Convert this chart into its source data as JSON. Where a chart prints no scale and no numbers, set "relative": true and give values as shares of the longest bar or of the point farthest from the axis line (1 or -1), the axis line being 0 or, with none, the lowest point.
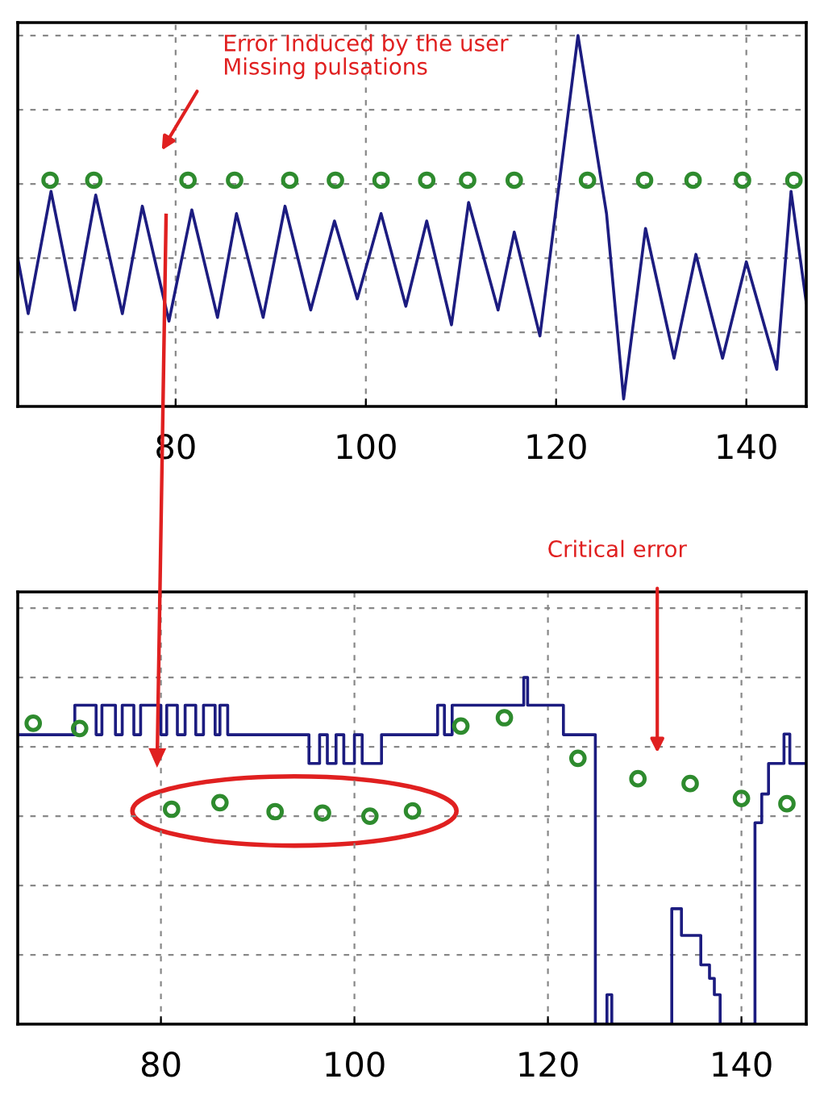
{
  "chart_data": [
    {
      "type": "line",
      "relative": true,
      "xlim": [
        63.4,
        146.3
      ],
      "xticks": [
        80,
        100,
        120,
        140
      ],
      "tick_labels": "x",
      "grid": true,
      "legend": false,
      "annotations": [
        "Error Induced by the user\nMissing pulsations"
      ],
      "series": [
        {
          "color": "#1c1c80",
          "x": [
            63.4,
            64.5,
            66.9,
            69.4,
            71.6,
            74.4,
            76.5,
            79.3,
            81.7,
            84.4,
            86.4,
            89.2,
            91.5,
            94.2,
            96.7,
            99.1,
            101.6,
            104.2,
            106.4,
            109.0,
            110.8,
            113.9,
            115.6,
            118.3,
            122.3,
            125.3,
            127.1,
            129.4,
            132.4,
            134.7,
            137.5,
            140.0,
            143.2,
            144.7,
            146.3
          ],
          "values": [
            0.4,
            0.25,
            0.58,
            0.26,
            0.57,
            0.25,
            0.54,
            0.23,
            0.53,
            0.24,
            0.52,
            0.24,
            0.54,
            0.26,
            0.5,
            0.29,
            0.52,
            0.27,
            0.5,
            0.22,
            0.55,
            0.26,
            0.47,
            0.19,
            1,
            0.52,
            0.02,
            0.48,
            0.13,
            0.41,
            0.13,
            0.39,
            0.1,
            0.58,
            0.28
          ]
        },
        {
          "type": "scatter",
          "marker": "circle",
          "color": "#2e8b2e",
          "x": [
            66.8,
            71.4,
            81.3,
            86.2,
            92.0,
            96.8,
            101.6,
            106.4,
            110.7,
            115.6,
            123.3,
            129.3,
            134.4,
            139.6,
            145.0
          ],
          "values": [
            0.61,
            0.61,
            0.61,
            0.61,
            0.61,
            0.61,
            0.61,
            0.61,
            0.61,
            0.61,
            0.61,
            0.61,
            0.61,
            0.61,
            0.61
          ]
        }
      ]
    },
    {
      "type": "step",
      "relative": true,
      "xlim": [
        65.2,
        146.7
      ],
      "xticks": [
        80,
        100,
        120,
        140
      ],
      "tick_labels": "x",
      "grid": true,
      "legend": false,
      "annotations": [
        "Critical error"
      ],
      "series": [
        {
          "color": "#1c1c80",
          "x": [
            65.2,
            71.1,
            73.3,
            73.9,
            75.3,
            76.0,
            77.2,
            77.9,
            80.0,
            80.6,
            81.7,
            82.5,
            83.6,
            84.4,
            85.6,
            86.1,
            86.9,
            95.3,
            96.4,
            97.2,
            98.1,
            98.9,
            100.0,
            100.8,
            102.8,
            108.6,
            109.3,
            110.1,
            117.5,
            117.9,
            121.6,
            124.9,
            126.1,
            126.6,
            132.8,
            133.8,
            135.8,
            136.7,
            137.2,
            137.8,
            141.4,
            142.1,
            142.8,
            144.4,
            145.0,
            146.7
          ],
          "values": [
            0.835,
            0.92,
            0.835,
            0.92,
            0.835,
            0.92,
            0.835,
            0.92,
            0.835,
            0.92,
            0.835,
            0.92,
            0.835,
            0.92,
            0.835,
            0.92,
            0.835,
            0.752,
            0.835,
            0.752,
            0.835,
            0.752,
            0.835,
            0.752,
            0.835,
            0.92,
            0.835,
            0.92,
            1,
            0.92,
            0.835,
            0,
            0.085,
            0,
            0.333,
            0.256,
            0.171,
            0.132,
            0.085,
            0,
            0.581,
            0.664,
            0.752,
            0.837,
            0.752,
            0.752
          ]
        },
        {
          "type": "scatter",
          "marker": "circle",
          "color": "#2e8b2e",
          "x": [
            66.8,
            71.6,
            81.1,
            86.1,
            91.8,
            96.7,
            101.6,
            106.0,
            111.0,
            115.5,
            123.1,
            129.3,
            134.7,
            140.0,
            144.7
          ],
          "values": [
            0.868,
            0.853,
            0.62,
            0.639,
            0.613,
            0.609,
            0.6,
            0.615,
            0.86,
            0.884,
            0.767,
            0.708,
            0.694,
            0.651,
            0.636
          ]
        }
      ]
    }
  ]
}
